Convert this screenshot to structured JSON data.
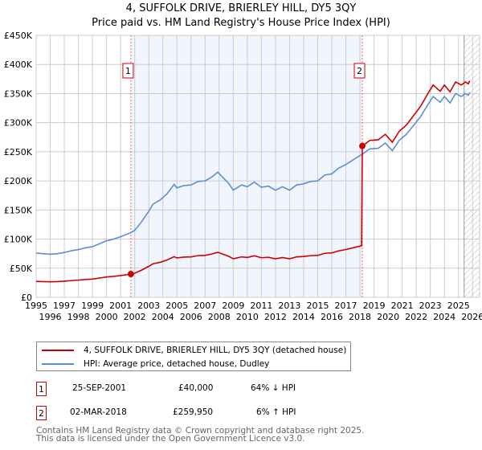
{
  "chart_data": {
    "type": "line",
    "title": "4, SUFFOLK DRIVE, BRIERLEY HILL, DY5 3QY",
    "subtitle": "Price paid vs. HM Land Registry's House Price Index (HPI)",
    "xlim": [
      1995,
      2026.5
    ],
    "ylim": [
      0,
      450000
    ],
    "x_ticks": [
      1995,
      1996,
      1997,
      1998,
      1999,
      2000,
      2001,
      2002,
      2003,
      2004,
      2005,
      2006,
      2007,
      2008,
      2009,
      2010,
      2011,
      2012,
      2013,
      2014,
      2015,
      2016,
      2017,
      2018,
      2019,
      2020,
      2021,
      2022,
      2023,
      2024,
      2025,
      2026
    ],
    "y_ticks": [
      {
        "v": 0,
        "label": "£0"
      },
      {
        "v": 50000,
        "label": "£50K"
      },
      {
        "v": 100000,
        "label": "£100K"
      },
      {
        "v": 150000,
        "label": "£150K"
      },
      {
        "v": 200000,
        "label": "£200K"
      },
      {
        "v": 250000,
        "label": "£250K"
      },
      {
        "v": 300000,
        "label": "£300K"
      },
      {
        "v": 350000,
        "label": "£350K"
      },
      {
        "v": 400000,
        "label": "£400K"
      },
      {
        "v": 450000,
        "label": "£450K"
      }
    ],
    "grid": true,
    "forecast_hatch_from": 2025.4,
    "series": [
      {
        "name": "4, SUFFOLK DRIVE, BRIERLEY HILL, DY5 3QY (detached house)",
        "color": "#cc0000",
        "unit": "k",
        "points": [
          [
            1995,
            27.4
          ],
          [
            1995.5,
            27
          ],
          [
            1996,
            26.6
          ],
          [
            1996.5,
            27
          ],
          [
            1997,
            27.7
          ],
          [
            1997.5,
            28.8
          ],
          [
            1998,
            29.5
          ],
          [
            1998.5,
            30.6
          ],
          [
            1999,
            31.3
          ],
          [
            1999.5,
            33.1
          ],
          [
            2000,
            34.9
          ],
          [
            2000.5,
            36
          ],
          [
            2001,
            37.4
          ],
          [
            2001.73,
            40
          ],
          [
            2002,
            41.4
          ],
          [
            2002.5,
            46.8
          ],
          [
            2003,
            53.3
          ],
          [
            2003.3,
            57.6
          ],
          [
            2003.8,
            60.1
          ],
          [
            2004.3,
            64.1
          ],
          [
            2004.8,
            69.8
          ],
          [
            2005,
            67.7
          ],
          [
            2005.5,
            69.1
          ],
          [
            2006,
            69.5
          ],
          [
            2006.5,
            71.6
          ],
          [
            2007,
            72
          ],
          [
            2007.5,
            74.5
          ],
          [
            2007.9,
            77.4
          ],
          [
            2008.3,
            73.8
          ],
          [
            2008.7,
            70.2
          ],
          [
            2009,
            66.2
          ],
          [
            2009.6,
            69.5
          ],
          [
            2010,
            68.4
          ],
          [
            2010.5,
            71.3
          ],
          [
            2011,
            68
          ],
          [
            2011.5,
            68.8
          ],
          [
            2012,
            66.2
          ],
          [
            2012.5,
            68.4
          ],
          [
            2013,
            66.2
          ],
          [
            2013.5,
            69.5
          ],
          [
            2014,
            70.2
          ],
          [
            2014.5,
            71.6
          ],
          [
            2015,
            72
          ],
          [
            2015.5,
            75.6
          ],
          [
            2016,
            76.3
          ],
          [
            2016.5,
            79.9
          ],
          [
            2017,
            82.1
          ],
          [
            2017.5,
            85
          ],
          [
            2018.12,
            88.6
          ],
          [
            2018.17,
            259.95
          ],
          [
            2018.7,
            269.5
          ],
          [
            2019.3,
            270.6
          ],
          [
            2019.8,
            280
          ],
          [
            2020.3,
            266.4
          ],
          [
            2020.8,
            285.4
          ],
          [
            2021.3,
            296
          ],
          [
            2021.8,
            311.8
          ],
          [
            2022.3,
            327.7
          ],
          [
            2022.8,
            348.8
          ],
          [
            2023.2,
            364.7
          ],
          [
            2023.7,
            354
          ],
          [
            2024,
            364.7
          ],
          [
            2024.4,
            353
          ],
          [
            2024.8,
            370
          ],
          [
            2025.2,
            364.7
          ],
          [
            2025.5,
            370
          ],
          [
            2025.7,
            366.8
          ],
          [
            2025.8,
            372
          ]
        ]
      },
      {
        "name": "HPI: Average price, detached house, Dudley",
        "color": "#5b8fd0",
        "unit": "k",
        "points": [
          [
            1995,
            76
          ],
          [
            1995.5,
            75
          ],
          [
            1996,
            74
          ],
          [
            1996.5,
            75
          ],
          [
            1997,
            77
          ],
          [
            1997.5,
            80
          ],
          [
            1998,
            82
          ],
          [
            1998.5,
            85
          ],
          [
            1999,
            87
          ],
          [
            1999.5,
            92
          ],
          [
            2000,
            97
          ],
          [
            2000.5,
            100
          ],
          [
            2001,
            104
          ],
          [
            2001.73,
            111
          ],
          [
            2002,
            115
          ],
          [
            2002.5,
            130
          ],
          [
            2003,
            148
          ],
          [
            2003.3,
            160
          ],
          [
            2003.8,
            167
          ],
          [
            2004.3,
            178
          ],
          [
            2004.8,
            194
          ],
          [
            2005,
            188
          ],
          [
            2005.5,
            192
          ],
          [
            2006,
            193
          ],
          [
            2006.5,
            199
          ],
          [
            2007,
            200
          ],
          [
            2007.5,
            207
          ],
          [
            2007.9,
            215
          ],
          [
            2008.3,
            205
          ],
          [
            2008.7,
            195
          ],
          [
            2009,
            184
          ],
          [
            2009.6,
            193
          ],
          [
            2010,
            190
          ],
          [
            2010.5,
            198
          ],
          [
            2011,
            189
          ],
          [
            2011.5,
            191
          ],
          [
            2012,
            184
          ],
          [
            2012.5,
            190
          ],
          [
            2013,
            184
          ],
          [
            2013.5,
            193
          ],
          [
            2014,
            195
          ],
          [
            2014.5,
            199
          ],
          [
            2015,
            200
          ],
          [
            2015.5,
            210
          ],
          [
            2016,
            212
          ],
          [
            2016.5,
            222
          ],
          [
            2017,
            228
          ],
          [
            2017.5,
            236
          ],
          [
            2018.17,
            246
          ],
          [
            2018.7,
            255
          ],
          [
            2019.3,
            256
          ],
          [
            2019.8,
            265
          ],
          [
            2020.3,
            252
          ],
          [
            2020.8,
            270
          ],
          [
            2021.3,
            280
          ],
          [
            2021.8,
            295
          ],
          [
            2022.3,
            310
          ],
          [
            2022.8,
            330
          ],
          [
            2023.2,
            345
          ],
          [
            2023.7,
            335
          ],
          [
            2024,
            345
          ],
          [
            2024.4,
            334
          ],
          [
            2024.8,
            350
          ],
          [
            2025.2,
            345
          ],
          [
            2025.5,
            350
          ],
          [
            2025.7,
            347
          ],
          [
            2025.8,
            352
          ]
        ]
      }
    ],
    "sales": [
      {
        "id": "1",
        "x": 2001.73,
        "price": 40000,
        "date": "25-SEP-2001",
        "price_label": "£40,000",
        "hpi_label": "64% ↓ HPI"
      },
      {
        "id": "2",
        "x": 2018.17,
        "price": 259950,
        "date": "02-MAR-2018",
        "price_label": "£259,950",
        "hpi_label": "6% ↑ HPI"
      }
    ]
  },
  "footer": {
    "line1": "Contains HM Land Registry data © Crown copyright and database right 2025.",
    "line2": "This data is licensed under the Open Government Licence v3.0."
  }
}
